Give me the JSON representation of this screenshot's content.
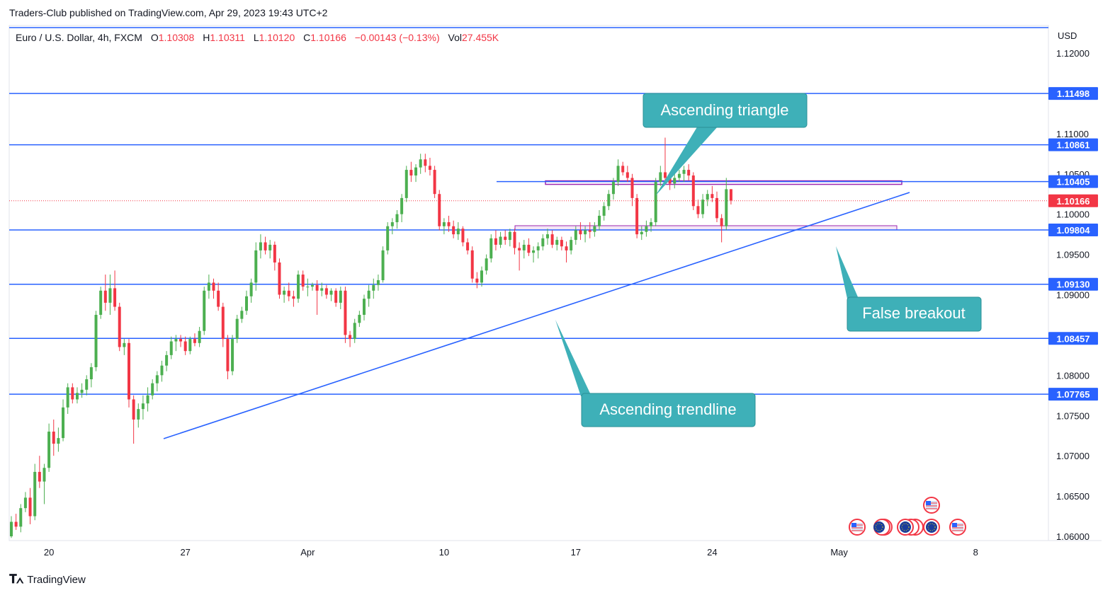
{
  "header": {
    "published": "Traders-Club published on TradingView.com, Apr 29, 2023 19:43 UTC+2"
  },
  "legend": {
    "symbol": "Euro / U.S. Dollar, 4h, FXCM",
    "o_label": "O",
    "o": "1.10308",
    "h_label": "H",
    "h": "1.10311",
    "l_label": "L",
    "l": "1.10120",
    "c_label": "C",
    "c": "1.10166",
    "change": "−0.00143 (−0.13%)",
    "vol_label": "Vol",
    "vol": "27.455K"
  },
  "axis": {
    "currency": "USD",
    "price_ticks": [
      "1.12000",
      "1.11000",
      "1.10500",
      "1.10000",
      "1.09500",
      "1.09000",
      "1.08500",
      "1.08000",
      "1.07500",
      "1.07000",
      "1.06500",
      "1.06000"
    ],
    "time_ticks": [
      "20",
      "27",
      "Apr",
      "10",
      "17",
      "24",
      "May",
      "8"
    ]
  },
  "levels": [
    {
      "label": "1.11498",
      "value": 1.11498
    },
    {
      "label": "1.10861",
      "value": 1.10861
    },
    {
      "label": "1.10405",
      "value": 1.10405
    },
    {
      "label": "1.09804",
      "value": 1.09804
    },
    {
      "label": "1.09130",
      "value": 1.0913
    },
    {
      "label": "1.08457",
      "value": 1.08457
    },
    {
      "label": "1.07765",
      "value": 1.07765
    }
  ],
  "current_price": {
    "label": "1.10166",
    "value": 1.10166
  },
  "annotations": {
    "triangle": "Ascending triangle",
    "trendline": "Ascending trendline",
    "breakout": "False breakout"
  },
  "colors": {
    "up": "#26a69a",
    "up_body": "#4caf50",
    "down": "#f23645",
    "level": "#2962ff",
    "callout": "#3eb0b8",
    "zone": "#9c27b0",
    "price_tag": "#f23645"
  },
  "footer": {
    "brand": "TradingView"
  },
  "chart_data": {
    "type": "candlestick",
    "symbol": "EURUSD",
    "timeframe": "4h",
    "ylim": [
      1.06,
      1.12
    ],
    "start": "2023-03-17 14:00",
    "end": "2023-04-28 18:00",
    "candles": [
      [
        1.06,
        1.0625,
        1.0598,
        1.0618
      ],
      [
        1.0618,
        1.0628,
        1.0608,
        1.0612
      ],
      [
        1.0612,
        1.064,
        1.0605,
        1.0635
      ],
      [
        1.0635,
        1.0655,
        1.063,
        1.0648
      ],
      [
        1.0648,
        1.066,
        1.0615,
        1.0625
      ],
      [
        1.0625,
        1.069,
        1.062,
        1.068
      ],
      [
        1.068,
        1.07,
        1.066,
        1.0668
      ],
      [
        1.0668,
        1.069,
        1.064,
        1.0685
      ],
      [
        1.0685,
        1.074,
        1.068,
        1.073
      ],
      [
        1.073,
        1.0745,
        1.07,
        1.0715
      ],
      [
        1.0715,
        1.0735,
        1.0705,
        1.0722
      ],
      [
        1.0722,
        1.077,
        1.0718,
        1.076
      ],
      [
        1.076,
        1.079,
        1.0752,
        1.0785
      ],
      [
        1.0785,
        1.079,
        1.0765,
        1.077
      ],
      [
        1.077,
        1.0785,
        1.0765,
        1.0778
      ],
      [
        1.0778,
        1.079,
        1.0772,
        1.0782
      ],
      [
        1.0782,
        1.08,
        1.0775,
        1.0795
      ],
      [
        1.0795,
        1.0815,
        1.0785,
        1.081
      ],
      [
        1.081,
        1.088,
        1.0805,
        1.0875
      ],
      [
        1.0875,
        1.091,
        1.087,
        1.0905
      ],
      [
        1.0905,
        1.0925,
        1.088,
        1.089
      ],
      [
        1.089,
        1.0925,
        1.0875,
        1.0908
      ],
      [
        1.0908,
        1.093,
        1.088,
        1.0885
      ],
      [
        1.0885,
        1.089,
        1.083,
        1.0835
      ],
      [
        1.0835,
        1.0845,
        1.0825,
        1.084
      ],
      [
        1.084,
        1.0845,
        1.076,
        1.077
      ],
      [
        1.077,
        1.0775,
        1.0715,
        1.0745
      ],
      [
        1.0745,
        1.0765,
        1.0735,
        1.0758
      ],
      [
        1.0758,
        1.0775,
        1.0745,
        1.0765
      ],
      [
        1.0765,
        1.0785,
        1.0755,
        1.0775
      ],
      [
        1.0775,
        1.0795,
        1.077,
        1.079
      ],
      [
        1.079,
        1.0805,
        1.078,
        1.08
      ],
      [
        1.08,
        1.0818,
        1.0792,
        1.0812
      ],
      [
        1.0812,
        1.083,
        1.0805,
        1.0825
      ],
      [
        1.0825,
        1.0848,
        1.082,
        1.0842
      ],
      [
        1.0842,
        1.085,
        1.083,
        1.0845
      ],
      [
        1.0845,
        1.085,
        1.0835,
        1.0842
      ],
      [
        1.0842,
        1.0848,
        1.0825,
        1.083
      ],
      [
        1.083,
        1.0848,
        1.0826,
        1.0845
      ],
      [
        1.0845,
        1.0852,
        1.0836,
        1.084
      ],
      [
        1.084,
        1.086,
        1.0835,
        1.0855
      ],
      [
        1.0855,
        1.091,
        1.085,
        1.0905
      ],
      [
        1.0905,
        1.0925,
        1.0895,
        1.0915
      ],
      [
        1.0915,
        1.092,
        1.0895,
        1.0905
      ],
      [
        1.0905,
        1.0915,
        1.088,
        1.0885
      ],
      [
        1.0885,
        1.089,
        1.0835,
        1.0845
      ],
      [
        1.0845,
        1.085,
        1.0795,
        1.0805
      ],
      [
        1.0805,
        1.085,
        1.08,
        1.0845
      ],
      [
        1.0845,
        1.0875,
        1.084,
        1.087
      ],
      [
        1.087,
        1.0885,
        1.0865,
        1.088
      ],
      [
        1.088,
        1.0905,
        1.0875,
        1.0898
      ],
      [
        1.0898,
        1.092,
        1.089,
        1.0915
      ],
      [
        1.0915,
        1.0965,
        1.0905,
        1.0955
      ],
      [
        1.0955,
        1.0975,
        1.0945,
        1.0965
      ],
      [
        1.0965,
        1.0972,
        1.095,
        1.0955
      ],
      [
        1.0955,
        1.0968,
        1.0945,
        1.0962
      ],
      [
        1.0962,
        1.0966,
        1.093,
        1.094
      ],
      [
        1.094,
        1.0945,
        1.0895,
        1.09
      ],
      [
        1.09,
        1.091,
        1.089,
        1.0905
      ],
      [
        1.0905,
        1.0915,
        1.0892,
        1.0898
      ],
      [
        1.0898,
        1.0905,
        1.0885,
        1.0895
      ],
      [
        1.0895,
        1.093,
        1.089,
        1.0925
      ],
      [
        1.0925,
        1.093,
        1.0905,
        1.091
      ],
      [
        1.091,
        1.092,
        1.0898,
        1.091
      ],
      [
        1.091,
        1.0915,
        1.0905,
        1.0912
      ],
      [
        1.0912,
        1.0918,
        1.0875,
        1.0905
      ],
      [
        1.0905,
        1.0915,
        1.0898,
        1.0908
      ],
      [
        1.0908,
        1.0912,
        1.0895,
        1.09
      ],
      [
        1.09,
        1.0908,
        1.0892,
        1.0905
      ],
      [
        1.0905,
        1.0908,
        1.0885,
        1.089
      ],
      [
        1.089,
        1.091,
        1.0882,
        1.0905
      ],
      [
        1.0905,
        1.091,
        1.084,
        1.085
      ],
      [
        1.085,
        1.0855,
        1.0835,
        1.0845
      ],
      [
        1.0845,
        1.087,
        1.084,
        1.0865
      ],
      [
        1.0865,
        1.088,
        1.086,
        1.0875
      ],
      [
        1.0875,
        1.09,
        1.0868,
        1.0895
      ],
      [
        1.0895,
        1.0912,
        1.0885,
        1.0905
      ],
      [
        1.0905,
        1.092,
        1.0895,
        1.0912
      ],
      [
        1.0912,
        1.0925,
        1.0905,
        1.0918
      ],
      [
        1.0918,
        1.096,
        1.0915,
        1.0955
      ],
      [
        1.0955,
        1.099,
        1.095,
        1.0985
      ],
      [
        1.0985,
        1.0995,
        1.0975,
        1.099
      ],
      [
        1.099,
        1.1005,
        1.0982,
        1.1
      ],
      [
        1.1,
        1.1025,
        1.099,
        1.102
      ],
      [
        1.102,
        1.106,
        1.1015,
        1.1055
      ],
      [
        1.1055,
        1.1065,
        1.104,
        1.1048
      ],
      [
        1.1048,
        1.1062,
        1.104,
        1.1058
      ],
      [
        1.1058,
        1.1075,
        1.105,
        1.1068
      ],
      [
        1.1068,
        1.1075,
        1.1052,
        1.106
      ],
      [
        1.106,
        1.107,
        1.1048,
        1.1055
      ],
      [
        1.1055,
        1.106,
        1.102,
        1.1025
      ],
      [
        1.1025,
        1.103,
        1.098,
        1.0985
      ],
      [
        1.0985,
        1.0995,
        1.0975,
        1.099
      ],
      [
        1.099,
        1.0998,
        1.0978,
        1.0985
      ],
      [
        1.0985,
        1.0992,
        1.097,
        1.0975
      ],
      [
        1.0975,
        1.099,
        1.0968,
        1.0982
      ],
      [
        1.0982,
        1.0985,
        1.096,
        1.0965
      ],
      [
        1.0965,
        1.097,
        1.095,
        1.0955
      ],
      [
        1.0955,
        1.096,
        1.0915,
        1.092
      ],
      [
        1.092,
        1.0928,
        1.0908,
        1.0915
      ],
      [
        1.0915,
        1.0935,
        1.091,
        1.093
      ],
      [
        1.093,
        1.095,
        1.0925,
        1.0945
      ],
      [
        1.0945,
        1.0975,
        1.094,
        1.097
      ],
      [
        1.097,
        1.098,
        1.0955,
        1.0962
      ],
      [
        1.0962,
        1.0978,
        1.0958,
        1.0972
      ],
      [
        1.0972,
        1.098,
        1.0962,
        1.0968
      ],
      [
        1.0968,
        1.0982,
        1.096,
        1.0978
      ],
      [
        1.0978,
        1.0982,
        1.095,
        1.0958
      ],
      [
        1.0958,
        1.0965,
        1.093,
        1.0955
      ],
      [
        1.0955,
        1.0968,
        1.0945,
        1.0962
      ],
      [
        1.0962,
        1.097,
        1.0948,
        1.0952
      ],
      [
        1.0952,
        1.096,
        1.094,
        1.0955
      ],
      [
        1.0955,
        1.0965,
        1.0945,
        1.096
      ],
      [
        1.096,
        1.0975,
        1.0955,
        1.097
      ],
      [
        1.097,
        1.0982,
        1.0962,
        1.0975
      ],
      [
        1.0975,
        1.098,
        1.0958,
        1.0962
      ],
      [
        1.0962,
        1.0972,
        1.0955,
        1.0968
      ],
      [
        1.0968,
        1.0972,
        1.0955,
        1.096
      ],
      [
        1.096,
        1.0966,
        1.094,
        1.0955
      ],
      [
        1.0955,
        1.0972,
        1.095,
        1.0968
      ],
      [
        1.0968,
        1.0985,
        1.0962,
        1.098
      ],
      [
        1.098,
        1.099,
        1.0968,
        1.0975
      ],
      [
        1.0975,
        1.0985,
        1.0965,
        1.098
      ],
      [
        1.098,
        1.099,
        1.097,
        1.0978
      ],
      [
        1.0978,
        1.099,
        1.0972,
        1.0985
      ],
      [
        1.0985,
        1.1005,
        1.098,
        1.0998
      ],
      [
        1.0998,
        1.1015,
        1.0992,
        1.101
      ],
      [
        1.101,
        1.103,
        1.1005,
        1.1025
      ],
      [
        1.1025,
        1.1045,
        1.1018,
        1.104
      ],
      [
        1.104,
        1.1068,
        1.1035,
        1.106
      ],
      [
        1.106,
        1.1065,
        1.1048,
        1.1052
      ],
      [
        1.1052,
        1.106,
        1.104,
        1.1045
      ],
      [
        1.1045,
        1.105,
        1.101,
        1.102
      ],
      [
        1.102,
        1.1025,
        1.097,
        1.0975
      ],
      [
        1.0975,
        1.0985,
        1.0968,
        1.0978
      ],
      [
        1.0978,
        1.0992,
        1.0972,
        1.0985
      ],
      [
        1.0985,
        1.0995,
        1.0978,
        1.099
      ],
      [
        1.099,
        1.1045,
        1.0985,
        1.104
      ],
      [
        1.104,
        1.106,
        1.1035,
        1.1052
      ],
      [
        1.1052,
        1.1095,
        1.104,
        1.1045
      ],
      [
        1.1045,
        1.1052,
        1.103,
        1.1038
      ],
      [
        1.1038,
        1.105,
        1.1032,
        1.1045
      ],
      [
        1.1045,
        1.1055,
        1.104,
        1.105
      ],
      [
        1.105,
        1.106,
        1.104,
        1.1055
      ],
      [
        1.1055,
        1.1062,
        1.1042,
        1.1048
      ],
      [
        1.1048,
        1.1052,
        1.1005,
        1.101
      ],
      [
        1.101,
        1.1018,
        1.0995,
        1.1
      ],
      [
        1.1,
        1.1025,
        1.0995,
        1.1018
      ],
      [
        1.1018,
        1.103,
        1.101,
        1.1025
      ],
      [
        1.1025,
        1.1035,
        1.1015,
        1.102
      ],
      [
        1.102,
        1.1028,
        1.099,
        1.0995
      ],
      [
        1.0995,
        1.1,
        1.0965,
        1.0985
      ],
      [
        1.0985,
        1.1045,
        1.098,
        1.1031
      ],
      [
        1.1031,
        1.1031,
        1.1012,
        1.1017
      ]
    ]
  }
}
